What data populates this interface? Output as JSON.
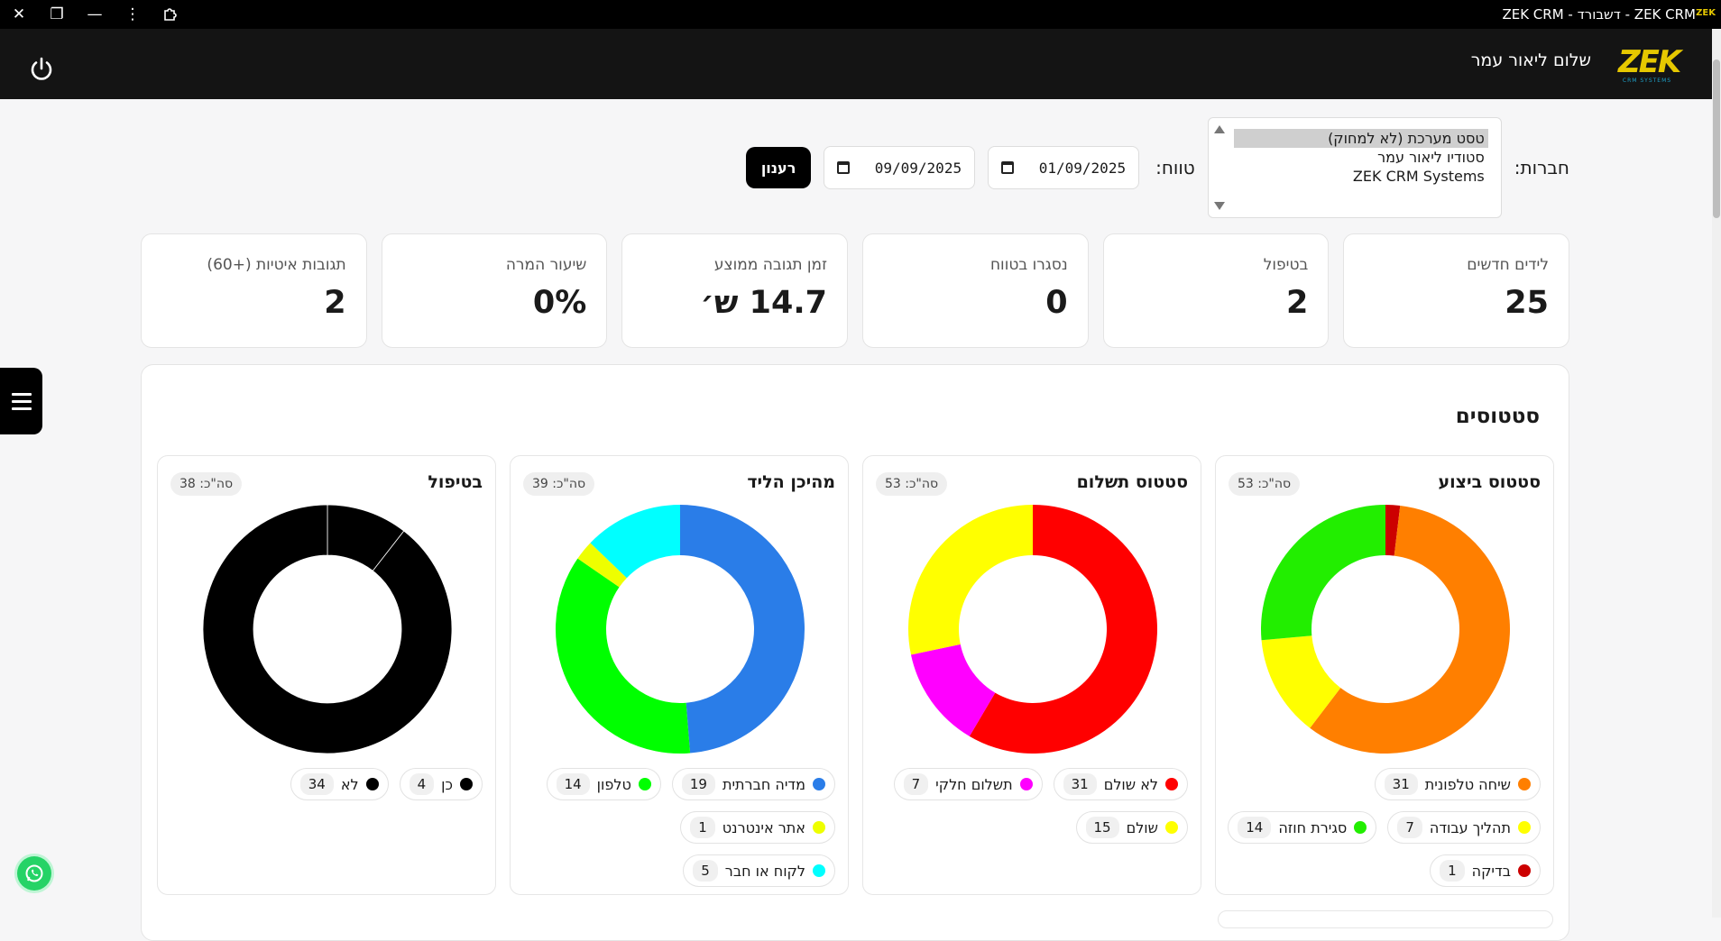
{
  "window": {
    "title": "ZEK CRM - דשבורד - ZEK CRM",
    "logo_mark": "ZEK"
  },
  "header": {
    "greeting": "שלום ליאור עמר",
    "logo_text": "ZEK",
    "logo_sub": "CRM SYSTEMS"
  },
  "filters": {
    "companies_label": "חברות:",
    "companies": [
      {
        "label": "טסט מערכת (לא למחוק)",
        "selected": true
      },
      {
        "label": "סטודיו ליאור עמר",
        "selected": false
      },
      {
        "label": "ZEK CRM Systems",
        "selected": false
      }
    ],
    "range_label": "טווח:",
    "date_from": "01/09/2025",
    "date_to": "09/09/2025",
    "refresh_label": "רענון"
  },
  "kpis": [
    {
      "label": "לידים חדשים",
      "value": "25"
    },
    {
      "label": "בטיפול",
      "value": "2"
    },
    {
      "label": "נסגרו בטווח",
      "value": "0"
    },
    {
      "label": "זמן תגובה ממוצע",
      "value": "14.7 ש׳"
    },
    {
      "label": "שיעור המרה",
      "value": "0%"
    },
    {
      "label": "תגובות איטיות (+60)",
      "value": "2"
    }
  ],
  "statuses": {
    "title": "סטטוסים"
  },
  "chart_data": [
    {
      "type": "pie",
      "title": "סטטוס ביצוע",
      "total_label": "סה\"כ: 53",
      "categories": [
        "בדיקה",
        "שיחה טלפונית",
        "תהליך עבודה",
        "סגירת חוזה"
      ],
      "values": [
        1,
        31,
        7,
        14
      ],
      "colors": [
        "#cc0000",
        "#ff7f00",
        "#ffff00",
        "#22ee00"
      ],
      "legend": [
        {
          "name": "שיחה טלפונית",
          "count": "31",
          "color": "#ff7f00"
        },
        {
          "name": "תהליך עבודה",
          "count": "7",
          "color": "#ffff00"
        },
        {
          "name": "סגירת חוזה",
          "count": "14",
          "color": "#22ee00"
        },
        {
          "name": "בדיקה",
          "count": "1",
          "color": "#cc0000"
        }
      ]
    },
    {
      "type": "pie",
      "title": "סטטוס תשלום",
      "total_label": "סה\"כ: 53",
      "categories": [
        "לא שולם",
        "תשלום חלקי",
        "שולם"
      ],
      "values": [
        31,
        7,
        15
      ],
      "colors": [
        "#ff0000",
        "#ff00ff",
        "#ffff00"
      ],
      "legend": [
        {
          "name": "לא שולם",
          "count": "31",
          "color": "#ff0000"
        },
        {
          "name": "תשלום חלקי",
          "count": "7",
          "color": "#ff00ff"
        },
        {
          "name": "שולם",
          "count": "15",
          "color": "#ffff00"
        }
      ]
    },
    {
      "type": "pie",
      "title": "מהיכן הליד",
      "total_label": "סה\"כ: 39",
      "categories": [
        "מדיה חברתית",
        "טלפון",
        "אתר אינטרנט",
        "לקוח או חבר"
      ],
      "values": [
        19,
        14,
        1,
        5
      ],
      "colors": [
        "#2a7de8",
        "#00ff00",
        "#eeff00",
        "#00ffff"
      ],
      "legend": [
        {
          "name": "מדיה חברתית",
          "count": "19",
          "color": "#2a7de8"
        },
        {
          "name": "טלפון",
          "count": "14",
          "color": "#00ff00"
        },
        {
          "name": "אתר אינטרנט",
          "count": "1",
          "color": "#eeff00"
        },
        {
          "name": "לקוח או חבר",
          "count": "5",
          "color": "#00ffff"
        }
      ]
    },
    {
      "type": "pie",
      "title": "בטיפול",
      "total_label": "סה\"כ: 38",
      "categories": [
        "כן",
        "לא"
      ],
      "values": [
        4,
        34
      ],
      "colors": [
        "#000000",
        "#000000"
      ],
      "legend": [
        {
          "name": "כן",
          "count": "4",
          "color": "#000000"
        },
        {
          "name": "לא",
          "count": "34",
          "color": "#000000"
        }
      ]
    }
  ]
}
